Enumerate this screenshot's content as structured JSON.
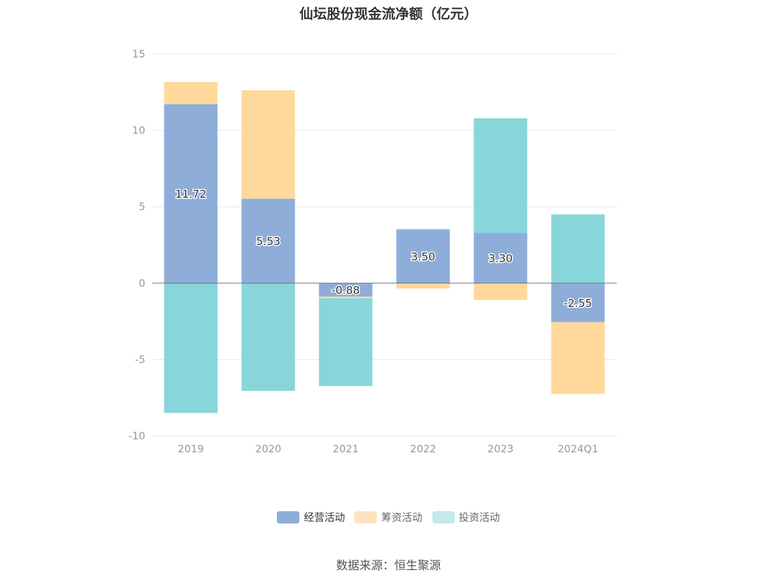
{
  "chart_data": {
    "type": "bar",
    "stacked": true,
    "title": "仙坛股份现金流净额（亿元）",
    "categories": [
      "2019",
      "2020",
      "2021",
      "2022",
      "2023",
      "2024Q1"
    ],
    "series": [
      {
        "name": "经营活动",
        "color": "#8eadd9",
        "values": [
          11.72,
          5.53,
          -0.88,
          3.5,
          3.3,
          -2.55
        ],
        "labels": [
          "11.72",
          "5.53",
          "-0.88",
          "3.50",
          "3.30",
          "-2.55"
        ]
      },
      {
        "name": "筹资活动",
        "color": "#ffd99b",
        "values": [
          1.45,
          7.1,
          -0.1,
          -0.35,
          -1.1,
          -4.7
        ]
      },
      {
        "name": "投资活动",
        "color": "#87d6da",
        "values": [
          -8.5,
          -7.05,
          -5.75,
          0.05,
          7.5,
          4.5
        ]
      }
    ],
    "ylim": [
      -10,
      15
    ],
    "yticks": [
      -10,
      -5,
      0,
      5,
      10,
      15
    ],
    "grid": true,
    "legend_position": "bottom"
  },
  "source_text": "数据来源：恒生聚源"
}
